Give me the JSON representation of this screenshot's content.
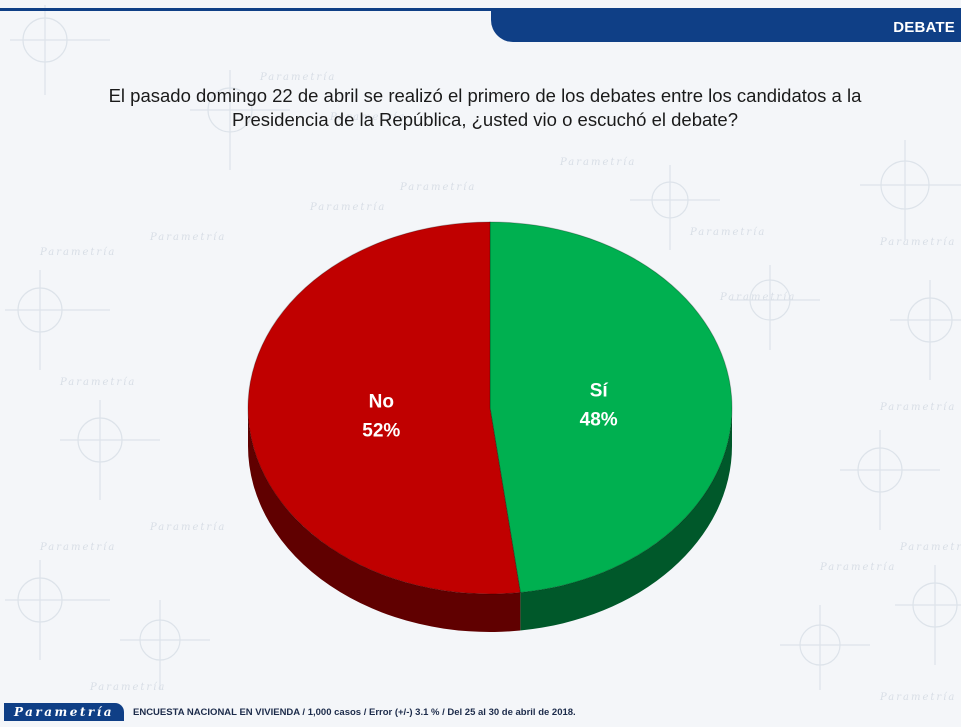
{
  "header": {
    "section_label": "DEBATE"
  },
  "question": {
    "line1": "El pasado domingo 22 de abril se realizó el primero de los debates entre los candidatos a la",
    "line2": "Presidencia de la República, ¿usted vio o escuchó el debate?"
  },
  "chart_data": {
    "type": "pie",
    "style": "3d",
    "slices": [
      {
        "label": "Sí",
        "value": 48,
        "value_label": "48%",
        "color": "#00b050",
        "side_color": "#00582a"
      },
      {
        "label": "No",
        "value": 52,
        "value_label": "52%",
        "color": "#c00000",
        "side_color": "#600000"
      }
    ]
  },
  "footer": {
    "logo": "Parametría",
    "note": "ENCUESTA NACIONAL EN VIVIENDA / 1,000 casos / Error (+/-) 3.1 % / Del 25 al 30 de abril de 2018."
  },
  "background": {
    "watermark": "Parametría"
  }
}
